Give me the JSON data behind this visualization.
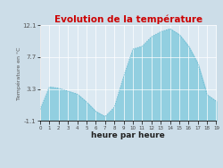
{
  "title": "Evolution de la température",
  "title_color": "#cc0000",
  "xlabel": "heure par heure",
  "ylabel": "Température en °C",
  "background_color": "#ccdde8",
  "plot_background": "#dce9f2",
  "fill_color": "#92cfe0",
  "line_color": "#68b8d0",
  "ylim": [
    -1.1,
    12.1
  ],
  "xlim": [
    0,
    19
  ],
  "yticks": [
    -1.1,
    3.3,
    7.7,
    12.1
  ],
  "xticks": [
    0,
    1,
    2,
    3,
    4,
    5,
    6,
    7,
    8,
    9,
    10,
    11,
    12,
    13,
    14,
    15,
    16,
    17,
    18,
    19
  ],
  "hours": [
    0,
    1,
    2,
    3,
    4,
    5,
    6,
    7,
    8,
    9,
    10,
    11,
    12,
    13,
    14,
    15,
    16,
    17,
    18,
    19
  ],
  "temps": [
    0.5,
    3.6,
    3.4,
    3.0,
    2.6,
    1.5,
    0.2,
    -0.5,
    0.8,
    5.0,
    8.8,
    9.2,
    10.5,
    11.2,
    11.6,
    10.8,
    9.2,
    6.8,
    2.5,
    1.6
  ]
}
